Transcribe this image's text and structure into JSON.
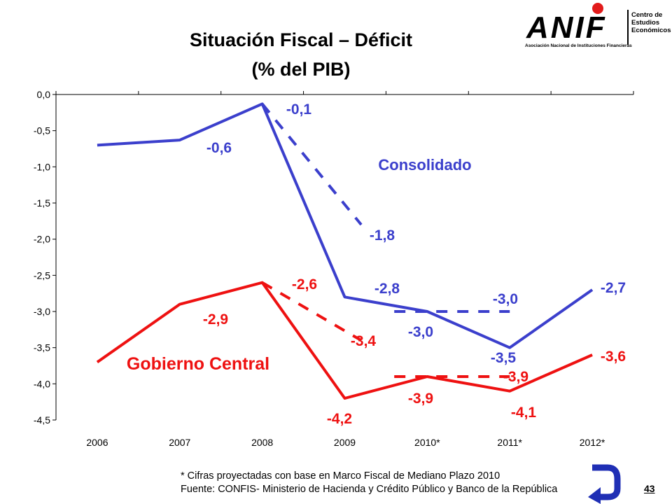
{
  "header": {
    "title_line1": "Situación Fiscal – Déficit",
    "title_line2": "(% del PIB)"
  },
  "logo": {
    "wordmark": "ANIF",
    "caption": "Asociación Nacional de Instituciones Financieras",
    "center_line1": "Centro de",
    "center_line2": "Estudios",
    "center_line3": "Económicos"
  },
  "chart_data": {
    "type": "line",
    "categories": [
      "2006",
      "2007",
      "2008",
      "2009",
      "2010*",
      "2011*",
      "2012*"
    ],
    "ylim": [
      -4.5,
      0.0
    ],
    "yticks": [
      "0,0",
      "-0,5",
      "-1,0",
      "-1,5",
      "-2,0",
      "-2,5",
      "-3,0",
      "-3,5",
      "-4,0",
      "-4,5"
    ],
    "grid": false,
    "series": [
      {
        "name": "Consolidado",
        "color": "#3b3fcc",
        "values": [
          -0.7,
          -0.63,
          -0.13,
          -2.8,
          -3.0,
          -3.5,
          -2.7
        ],
        "projected": [
          {
            "x": [
              2,
              3.2
            ],
            "values": [
              -0.13,
              -1.8
            ]
          },
          {
            "x": [
              3.6,
              5.0
            ],
            "values": [
              -3.0,
              -3.0
            ]
          }
        ]
      },
      {
        "name": "Gobierno Central",
        "color": "#ee1111",
        "values": [
          -3.7,
          -2.9,
          -2.6,
          -4.2,
          -3.9,
          -4.1,
          -3.6
        ],
        "projected": [
          {
            "x": [
              2,
              3.2
            ],
            "values": [
              -2.6,
              -3.4
            ]
          },
          {
            "x": [
              3.6,
              5.0
            ],
            "values": [
              -3.9,
              -3.9
            ]
          }
        ]
      }
    ],
    "labels_consolidado": [
      "-0,1",
      "-0,6",
      "-1,8",
      "-2,8",
      "-3,0",
      "-3,0",
      "-3,5",
      "-2,7"
    ],
    "labels_gobierno": [
      "-2,6",
      "-2,9",
      "-3,4",
      "-4,2",
      "-3,9",
      "-3,9",
      "-4,1",
      "-3,6"
    ],
    "series_labels": {
      "consolidado": "Consolidado",
      "gobierno": "Gobierno Central"
    }
  },
  "footer": {
    "note1": "* Cifras proyectadas con base en Marco Fiscal de Mediano Plazo 2010",
    "note2": "Fuente: CONFIS- Ministerio de Hacienda y Crédito Público y Banco de la República",
    "page_number": "43"
  }
}
